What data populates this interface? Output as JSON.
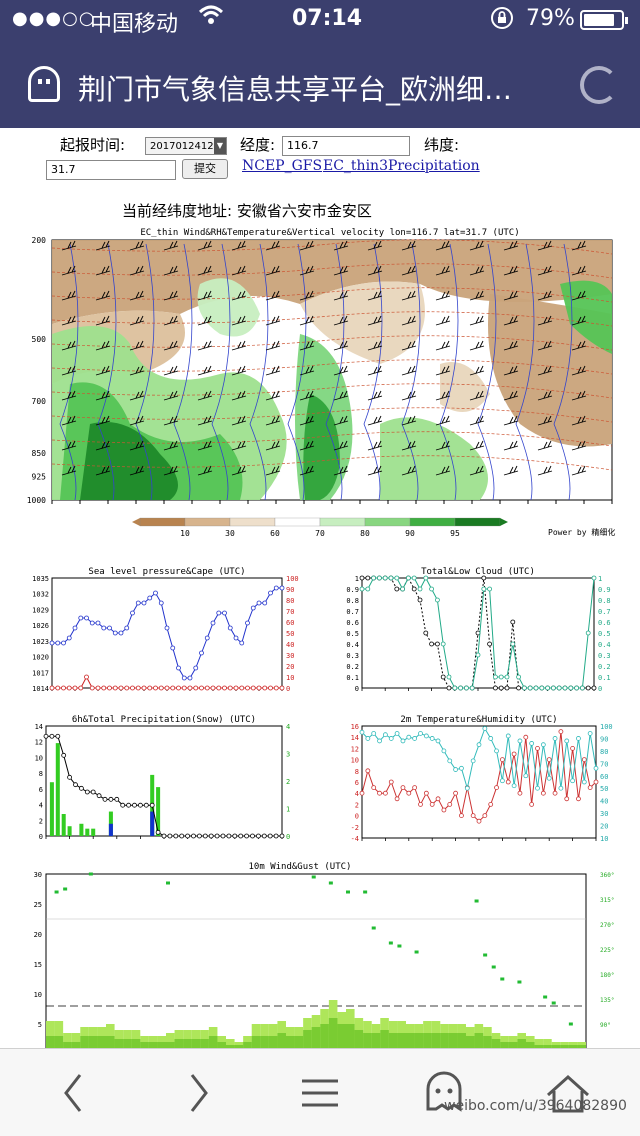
{
  "status_bar": {
    "signal": "●●●○○",
    "carrier": "中国移动",
    "time": "07:14",
    "battery": "79%"
  },
  "browser": {
    "title": "荆门市气象信息共享平台_欧洲细…"
  },
  "form": {
    "forecast_time_label": "起报时间:",
    "forecast_time_value": "2017012412",
    "longitude_label": "经度:",
    "longitude_value": "116.7",
    "latitude_label": "纬度:",
    "latitude_value": "31.7",
    "submit_label": "提交",
    "links": [
      "NCEP_GFS",
      "EC_thin3",
      "Precipitation"
    ]
  },
  "address": "当前经纬度地址: 安徽省六安市金安区",
  "cross_section": {
    "title": "EC_thin Wind&RH&Temperature&Vertical velocity lon=116.7 lat=31.7 (UTC)",
    "y_ticks": [
      "200",
      "500",
      "700",
      "850",
      "925",
      "1000"
    ],
    "colorbar_ticks": [
      "10",
      "30",
      "60",
      "70",
      "80",
      "90",
      "95"
    ],
    "credit": "Power by 精细化"
  },
  "chart_data": [
    {
      "type": "line",
      "title": "Sea level pressure&Cape (UTC)",
      "left_ticks": [
        "1035",
        "1032",
        "1029",
        "1026",
        "1023",
        "1020",
        "1017",
        "1014"
      ],
      "right_ticks": [
        "100",
        "90",
        "80",
        "70",
        "60",
        "50",
        "40",
        "30",
        "20",
        "10",
        "0"
      ],
      "ylim_left": [
        1014,
        1036
      ],
      "ylim_right": [
        0,
        100
      ],
      "series": [
        {
          "values": [
            1023,
            1023,
            1023,
            1024,
            1026,
            1028,
            1028,
            1027,
            1027,
            1026,
            1026,
            1025,
            1025,
            1026,
            1029,
            1031,
            1031,
            1032,
            1033,
            1031,
            1026,
            1022,
            1018,
            1016,
            1016,
            1018,
            1021,
            1024,
            1027,
            1029,
            1029,
            1026,
            1024,
            1023,
            1027,
            1030,
            1031,
            1031,
            1033,
            1034,
            1034
          ]
        },
        {
          "values": [
            0,
            0,
            0,
            0,
            0,
            0,
            10,
            0,
            0,
            0,
            0,
            0,
            0,
            0,
            0,
            0,
            0,
            0,
            0,
            0,
            0,
            0,
            0,
            0,
            0,
            0,
            0,
            0,
            0,
            0,
            0,
            0,
            0,
            0,
            0,
            0,
            0,
            0,
            0,
            0,
            0
          ]
        }
      ]
    },
    {
      "type": "line",
      "title": "Total&Low Cloud (UTC)",
      "left_ticks": [
        "1",
        "0.9",
        "0.8",
        "0.7",
        "0.6",
        "0.5",
        "0.4",
        "0.3",
        "0.2",
        "0.1",
        "0"
      ],
      "right_ticks": [
        "1",
        "0.9",
        "0.8",
        "0.7",
        "0.6",
        "0.5",
        "0.4",
        "0.3",
        "0.2",
        "0.1",
        "0"
      ],
      "ylim": [
        0,
        1
      ],
      "series": [
        {
          "values": [
            1,
            1,
            1,
            1,
            1,
            1,
            0.9,
            0.9,
            1,
            0.9,
            0.8,
            0.5,
            0.4,
            0.4,
            0.1,
            0,
            0,
            0,
            0,
            0,
            0.5,
            1,
            0.4,
            0,
            0,
            0,
            0.6,
            0,
            0,
            0,
            0,
            0,
            0,
            0,
            0,
            0,
            0,
            0,
            0,
            0,
            0
          ]
        },
        {
          "values": [
            0.9,
            0.9,
            1,
            1,
            1,
            1,
            1,
            0.9,
            1,
            1,
            0.9,
            1,
            0.9,
            0.8,
            0.4,
            0.1,
            0,
            0,
            0,
            0,
            0.3,
            0.9,
            0.9,
            0.1,
            0.1,
            0.1,
            0.4,
            0.1,
            0,
            0,
            0,
            0,
            0,
            0,
            0,
            0,
            0,
            0,
            0,
            0.5,
            1
          ]
        }
      ]
    },
    {
      "type": "bar",
      "title": "6h&Total Precipitation(Snow) (UTC)",
      "left_ticks": [
        "14",
        "12",
        "10",
        "8",
        "6",
        "4",
        "2",
        "0"
      ],
      "right_ticks": [
        "4",
        "3",
        "2",
        "1",
        "0"
      ],
      "ylim_left": [
        0,
        15
      ],
      "ylim_right": [
        0,
        4.5
      ],
      "series": [
        {
          "name": "total",
          "values": [
            13.6,
            13.6,
            13.6,
            11,
            8,
            7,
            6.5,
            6,
            6,
            5.5,
            5,
            5,
            5,
            4.2,
            4.2,
            4.2,
            4.2,
            4.2,
            4.2,
            0.5,
            0,
            0,
            0,
            0,
            0,
            0,
            0,
            0,
            0,
            0,
            0,
            0,
            0,
            0,
            0,
            0,
            0,
            0,
            0,
            0,
            0
          ]
        },
        {
          "name": "6h",
          "values": [
            0,
            2.2,
            3.8,
            0.9,
            0.4,
            0,
            0.5,
            0.3,
            0.3,
            0,
            0,
            1,
            0,
            0,
            0,
            0,
            0,
            0,
            2.5,
            2.0,
            0,
            0,
            0,
            0,
            0,
            0,
            0,
            0,
            0,
            0,
            0,
            0,
            0,
            0,
            0,
            0,
            0,
            0,
            0,
            0,
            0
          ]
        },
        {
          "name": "snow",
          "values": [
            0,
            0,
            0,
            0,
            0,
            0,
            0,
            0,
            0,
            0,
            0,
            0.5,
            0,
            0,
            0,
            0,
            0,
            0,
            1.0,
            0,
            0,
            0,
            0,
            0,
            0,
            0,
            0,
            0,
            0,
            0,
            0,
            0,
            0,
            0,
            0,
            0,
            0,
            0,
            0,
            0,
            0
          ]
        }
      ]
    },
    {
      "type": "line",
      "title": "2m Temperature&Humidity (UTC)",
      "left_ticks": [
        "16",
        "14",
        "12",
        "10",
        "8",
        "6",
        "4",
        "2",
        "0",
        "-2",
        "-4"
      ],
      "right_ticks": [
        "100",
        "90",
        "80",
        "70",
        "60",
        "50",
        "40",
        "30",
        "20",
        "10"
      ],
      "ylim_left": [
        -4,
        16
      ],
      "ylim_right": [
        10,
        100
      ],
      "series": [
        {
          "values": [
            4,
            8,
            5,
            4,
            4,
            6,
            3,
            5,
            4,
            5,
            2,
            4,
            2,
            3,
            1,
            2,
            4,
            0,
            5,
            0,
            -1,
            0,
            2,
            5,
            10,
            6,
            11,
            4,
            14,
            2,
            12,
            4,
            10,
            4,
            15,
            3,
            12,
            3,
            10,
            5,
            6
          ]
        },
        {
          "values": [
            95,
            90,
            94,
            88,
            93,
            90,
            94,
            88,
            91,
            90,
            94,
            92,
            90,
            88,
            80,
            72,
            65,
            66,
            50,
            72,
            85,
            98,
            90,
            80,
            56,
            92,
            52,
            88,
            60,
            86,
            50,
            85,
            58,
            90,
            50,
            88,
            56,
            90,
            55,
            94,
            66
          ]
        }
      ]
    },
    {
      "type": "bar",
      "title": "10m Wind&Gust (UTC)",
      "left_ticks": [
        "30",
        "25",
        "20",
        "15",
        "10",
        "5"
      ],
      "right_ticks": [
        "360°",
        "315°",
        "270°",
        "225°",
        "180°",
        "135°",
        "90°"
      ],
      "ylim_left": [
        0,
        30
      ],
      "series": [
        {
          "name": "gust",
          "values": [
            5.5,
            5.5,
            3.5,
            3.5,
            4.5,
            4.5,
            4.5,
            5,
            4,
            4,
            4,
            3,
            3,
            3,
            3.5,
            4,
            4,
            4,
            4,
            4.5,
            3,
            2.5,
            2,
            3,
            5,
            5,
            5,
            5.5,
            4.5,
            4.5,
            6,
            6.5,
            7.5,
            9,
            7,
            7.5,
            6,
            5.5,
            5,
            6,
            5.5,
            5.5,
            5,
            5,
            5.5,
            5.5,
            5,
            5,
            5,
            4.5,
            5,
            4.5,
            3.5,
            3,
            3,
            3.5,
            3,
            2.5,
            2.5,
            2,
            2,
            2,
            2
          ]
        },
        {
          "name": "wind",
          "values": [
            3,
            3,
            2,
            2,
            3,
            3,
            3,
            3,
            2.5,
            2.5,
            2.5,
            2,
            2,
            2,
            2,
            2.5,
            2.5,
            2.5,
            2.5,
            3,
            2,
            1.5,
            1.5,
            2,
            3,
            3,
            3,
            3.5,
            3,
            3,
            4,
            4.5,
            5,
            6,
            5,
            5,
            4,
            3.5,
            3.5,
            4,
            3.5,
            3.5,
            3.5,
            3.5,
            3.5,
            3.5,
            3.5,
            3.5,
            3.5,
            3,
            3.5,
            3,
            2.5,
            2,
            2,
            2.5,
            2,
            1.5,
            1.5,
            1.5,
            1.5,
            1.5,
            1.5
          ]
        }
      ]
    }
  ],
  "watermark": "weibo.com/u/3964082890"
}
